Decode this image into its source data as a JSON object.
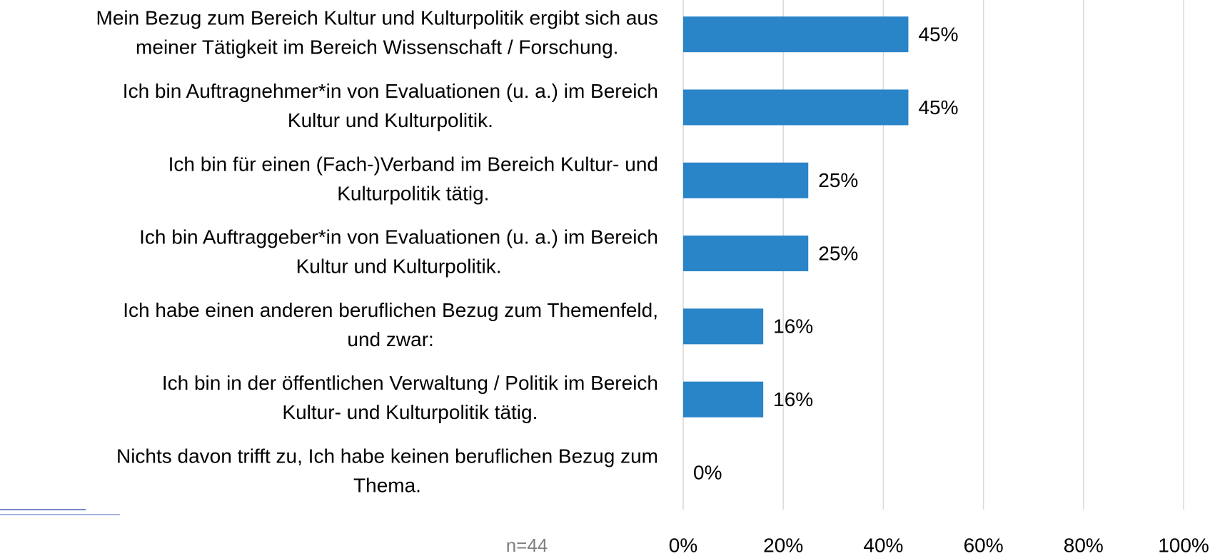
{
  "chart_data": {
    "type": "bar",
    "orientation": "horizontal",
    "categories": [
      "Mein Bezug zum Bereich Kultur und Kulturpolitik ergibt sich aus\nmeiner Tätigkeit im Bereich Wissenschaft / Forschung.",
      "Ich bin Auftragnehmer*in von Evaluationen (u. a.) im Bereich\nKultur und Kulturpolitik.",
      "Ich bin für einen (Fach-)Verband im Bereich Kultur- und\nKulturpolitik tätig.",
      "Ich bin Auftraggeber*in von Evaluationen (u. a.) im Bereich\nKultur und Kulturpolitik.",
      "Ich habe einen anderen beruflichen Bezug zum Themenfeld,\nund zwar:",
      "Ich bin in der öffentlichen Verwaltung / Politik im Bereich\nKultur- und Kulturpolitik tätig.",
      "Nichts davon trifft zu, Ich habe keinen beruflichen Bezug zum\nThema."
    ],
    "values": [
      45,
      45,
      25,
      25,
      16,
      16,
      0
    ],
    "value_labels": [
      "45%",
      "45%",
      "25%",
      "25%",
      "16%",
      "16%",
      "0%"
    ],
    "color": "#2a84c8",
    "xlim": [
      0,
      100
    ],
    "xticks": [
      {
        "value": 0,
        "label": "0%"
      },
      {
        "value": 20,
        "label": "20%"
      },
      {
        "value": 40,
        "label": "40%"
      },
      {
        "value": 60,
        "label": "60%"
      },
      {
        "value": 80,
        "label": "80%"
      },
      {
        "value": 100,
        "label": "100%"
      }
    ],
    "grid": true,
    "note": "n=44"
  }
}
